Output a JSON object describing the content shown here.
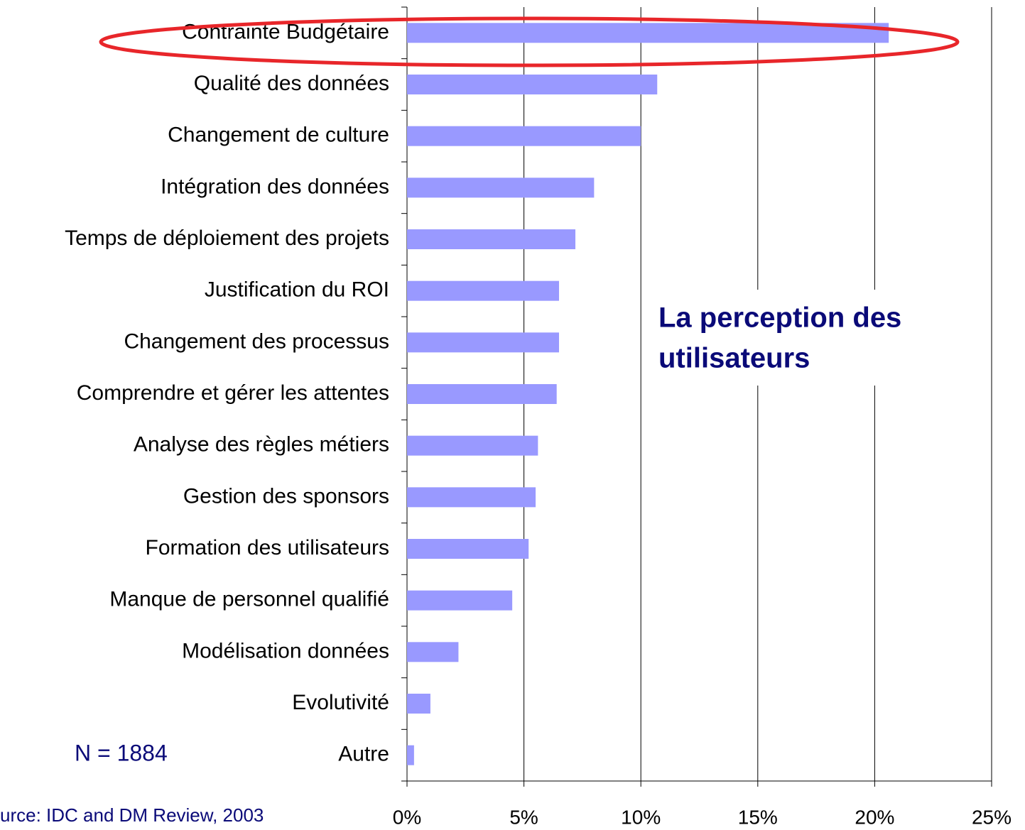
{
  "chart_data": {
    "type": "bar",
    "orientation": "horizontal",
    "categories": [
      "Contrainte Budgétaire",
      "Qualité des données",
      "Changement de culture",
      "Intégration des données",
      "Temps de déploiement des projets",
      "Justification du ROI",
      "Changement des processus",
      "Comprendre et gérer les attentes",
      "Analyse des règles métiers",
      "Gestion des sponsors",
      "Formation des utilisateurs",
      "Manque de personnel qualifié",
      "Modélisation données",
      "Evolutivité",
      "Autre"
    ],
    "values": [
      20.6,
      10.7,
      10.0,
      8.0,
      7.2,
      6.5,
      6.5,
      6.4,
      5.6,
      5.5,
      5.2,
      4.5,
      2.2,
      1.0,
      0.3
    ],
    "color": "#9999ff",
    "xlim": [
      0,
      25
    ],
    "xticks": [
      {
        "value": 0,
        "label": "0%"
      },
      {
        "value": 5,
        "label": "5%"
      },
      {
        "value": 10,
        "label": "10%"
      },
      {
        "value": 15,
        "label": "15%"
      },
      {
        "value": 20,
        "label": "20%"
      },
      {
        "value": 25,
        "label": "25%"
      }
    ],
    "grid": true,
    "annotation": [
      "La perception des",
      "utilisateurs"
    ],
    "note": "N = 1884",
    "source": "urce: IDC and DM Review, 2003"
  }
}
